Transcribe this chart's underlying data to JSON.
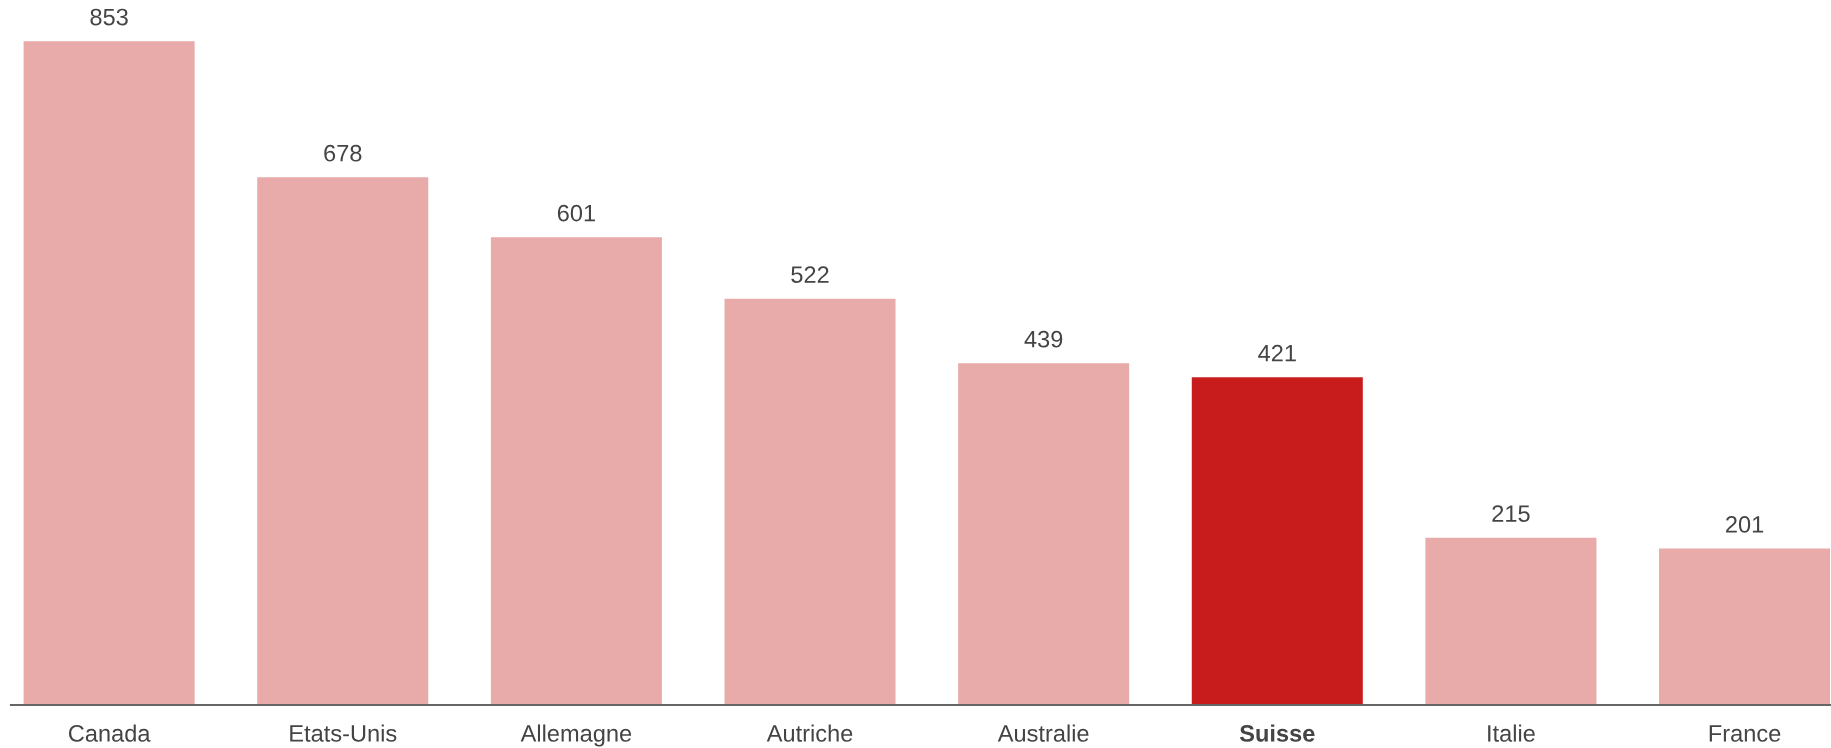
{
  "chart_data": {
    "type": "bar",
    "categories": [
      "Canada",
      "Etats-Unis",
      "Allemagne",
      "Autriche",
      "Australie",
      "Suisse",
      "Italie",
      "France"
    ],
    "values": [
      853,
      678,
      601,
      522,
      439,
      421,
      215,
      201
    ],
    "colors": [
      "#e9aaaa",
      "#e9aaaa",
      "#e9aaaa",
      "#e9aaaa",
      "#e9aaaa",
      "#c81c1c",
      "#e9aaaa",
      "#e9aaaa"
    ],
    "data_labels": true
  }
}
